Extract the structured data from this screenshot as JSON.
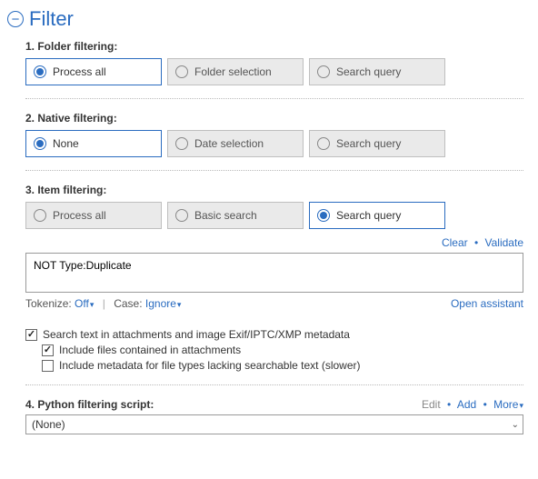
{
  "header": {
    "title": "Filter"
  },
  "sections": {
    "folder": {
      "title": "1. Folder filtering:",
      "options": [
        "Process all",
        "Folder selection",
        "Search query"
      ],
      "selected": 0
    },
    "native": {
      "title": "2. Native filtering:",
      "options": [
        "None",
        "Date selection",
        "Search query"
      ],
      "selected": 0
    },
    "item": {
      "title": "3. Item filtering:",
      "options": [
        "Process all",
        "Basic search",
        "Search query"
      ],
      "selected": 2,
      "clear": "Clear",
      "validate": "Validate",
      "query": "NOT Type:Duplicate",
      "tokenize_label": "Tokenize:",
      "tokenize_value": "Off",
      "case_label": "Case:",
      "case_value": "Ignore",
      "open_assistant": "Open assistant"
    },
    "checkboxes": {
      "search_text": {
        "label": "Search text in attachments and image Exif/IPTC/XMP metadata",
        "checked": true
      },
      "include_files": {
        "label": "Include files contained in attachments",
        "checked": true
      },
      "include_meta": {
        "label": "Include metadata for file types lacking searchable text (slower)",
        "checked": false
      }
    },
    "script": {
      "title": "4. Python filtering script:",
      "edit": "Edit",
      "add": "Add",
      "more": "More",
      "selected": "(None)"
    }
  }
}
